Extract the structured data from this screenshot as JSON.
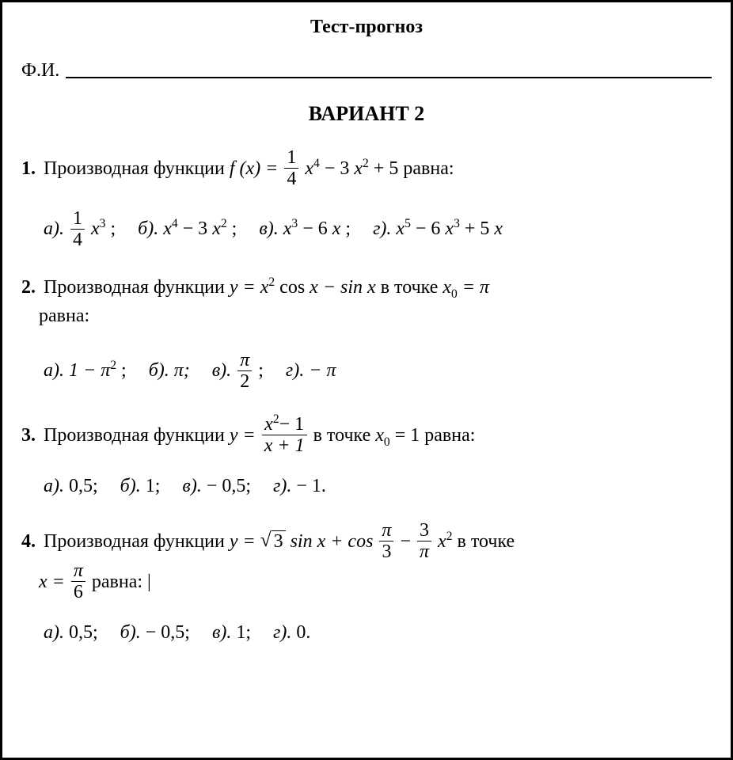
{
  "title": "Тест-прогноз",
  "name_label": "Ф.И.",
  "variant": "ВАРИАНТ 2",
  "labels": {
    "a": "а).",
    "b": "б).",
    "v": "в).",
    "g": "г)."
  },
  "q1": {
    "num": "1.",
    "text_before": "Производная функции",
    "fn_f": "f",
    "fn_arg": "(x) =",
    "frac_num": "1",
    "frac_den": "4",
    "poly_x4": "x",
    "poly_x4_pow": "4",
    "minus": "− 3",
    "poly_x2": "x",
    "poly_x2_pow": "2",
    "plus5": "+ 5",
    "text_after": "равна:",
    "optA_frac_num": "1",
    "optA_frac_den": "4",
    "optA_x": "x",
    "optA_pow": "3",
    "optA_end": ";",
    "optB_x1": "x",
    "optB_p1": "4",
    "optB_mid": "− 3",
    "optB_x2": "x",
    "optB_p2": "2",
    "optB_end": ";",
    "optV_x1": "x",
    "optV_p1": "3",
    "optV_mid": "− 6",
    "optV_x2": "x",
    "optV_end": ";",
    "optG_x1": "x",
    "optG_p1": "5",
    "optG_m1": "− 6",
    "optG_x2": "x",
    "optG_p2": "3",
    "optG_m2": "+ 5",
    "optG_x3": "x"
  },
  "q2": {
    "num": "2.",
    "text_before": "Производная функции",
    "y_eq": "y = x",
    "x2_pow": "2",
    "cos": "cos",
    "xminus": "x − sin x",
    "attext": "в точке",
    "x0": "x",
    "sub0": "0",
    "eq_pi": "= π",
    "cont": "равна:",
    "optA_1": "1 − π",
    "optA_pow": "2",
    "optA_end": ";",
    "optB": "π;",
    "optV_num": "π",
    "optV_den": "2",
    "optV_end": ";",
    "optG": "− π"
  },
  "q3": {
    "num": "3.",
    "text_before": "Производная функции",
    "y_eq": "y =",
    "num_x": "x",
    "num_pow": "2",
    "num_rest": "− 1",
    "den_x": "x + 1",
    "attext": "в точке",
    "x0": "x",
    "sub0": "0",
    "eq1": "= 1",
    "text_after": "равна:",
    "optA": "0,5;",
    "optB": "1;",
    "optV": "− 0,5;",
    "optG": "− 1."
  },
  "q4": {
    "num": "4.",
    "text_before": "Производная функции",
    "y_eq": "y =",
    "sqrt_arg": "3",
    "sinx": "sin x + cos",
    "f1_num": "π",
    "f1_den": "3",
    "minus": "−",
    "f2_num": "3",
    "f2_den": "π",
    "x2": "x",
    "x2_pow": "2",
    "attext": "в точке",
    "cont_x": "x =",
    "cont_num": "π",
    "cont_den": "6",
    "cont_after": "равна:",
    "cursor": "|",
    "optA": "0,5;",
    "optB": "− 0,5;",
    "optV": "1;",
    "optG": "0."
  },
  "colors": {
    "text": "#000000",
    "bg": "#ffffff",
    "border": "#000000"
  },
  "fonts": {
    "family": "Times New Roman",
    "title_size": 24,
    "body_size": 24
  }
}
